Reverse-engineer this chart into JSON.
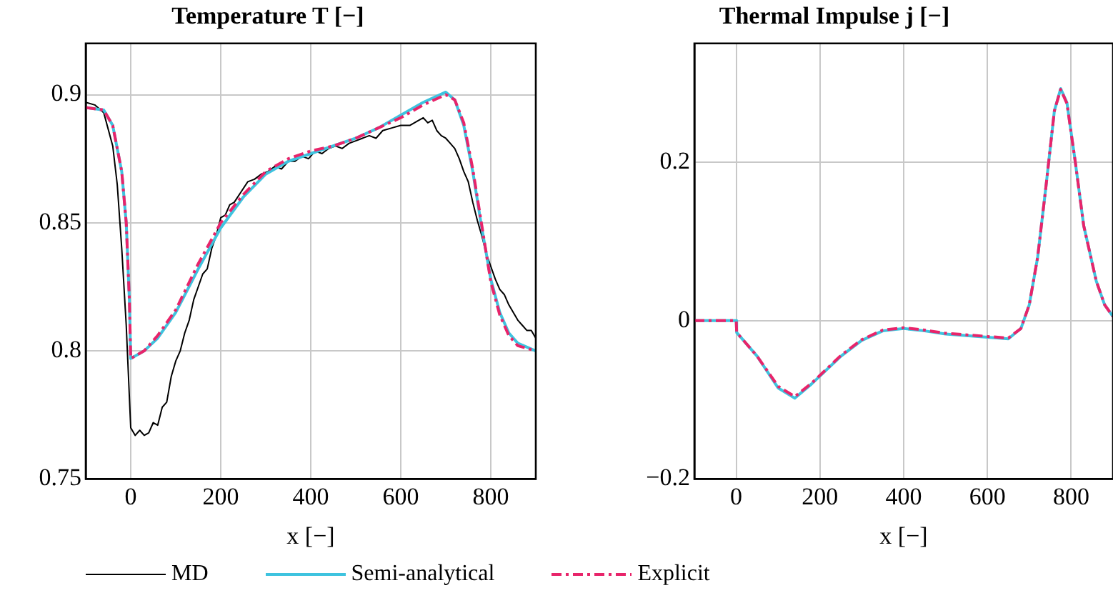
{
  "chart_data": [
    {
      "type": "line",
      "title": "Temperature T [−]",
      "xlabel": "x [−]",
      "xlim": [
        -100,
        900
      ],
      "xticks": [
        0,
        200,
        400,
        600,
        800
      ],
      "ylim": [
        0.75,
        0.92
      ],
      "yticks": [
        0.75,
        0.8,
        0.85,
        0.9
      ],
      "grid": true,
      "legend": "bottom",
      "marker": "none",
      "series": [
        {
          "name": "MD",
          "color": "#000000",
          "line_style": "solid",
          "x": [
            -100,
            -80,
            -60,
            -40,
            -30,
            -20,
            -10,
            -5,
            0,
            10,
            20,
            30,
            40,
            50,
            60,
            70,
            80,
            90,
            100,
            110,
            120,
            130,
            140,
            150,
            160,
            170,
            180,
            190,
            200,
            210,
            220,
            230,
            245,
            260,
            275,
            290,
            305,
            320,
            335,
            350,
            365,
            380,
            395,
            410,
            425,
            440,
            455,
            470,
            485,
            500,
            515,
            530,
            545,
            560,
            580,
            600,
            620,
            640,
            650,
            660,
            670,
            680,
            690,
            700,
            710,
            720,
            730,
            740,
            750,
            760,
            770,
            780,
            790,
            800,
            810,
            820,
            830,
            840,
            850,
            860,
            870,
            880,
            890,
            900
          ],
          "values": [
            0.897,
            0.896,
            0.893,
            0.88,
            0.865,
            0.84,
            0.81,
            0.79,
            0.77,
            0.767,
            0.769,
            0.767,
            0.768,
            0.772,
            0.771,
            0.778,
            0.78,
            0.79,
            0.796,
            0.8,
            0.807,
            0.812,
            0.82,
            0.825,
            0.83,
            0.832,
            0.84,
            0.845,
            0.852,
            0.853,
            0.857,
            0.858,
            0.862,
            0.866,
            0.867,
            0.869,
            0.87,
            0.872,
            0.871,
            0.874,
            0.874,
            0.876,
            0.875,
            0.878,
            0.877,
            0.879,
            0.88,
            0.879,
            0.881,
            0.882,
            0.883,
            0.884,
            0.883,
            0.886,
            0.887,
            0.888,
            0.888,
            0.89,
            0.891,
            0.889,
            0.89,
            0.886,
            0.884,
            0.883,
            0.881,
            0.879,
            0.875,
            0.87,
            0.866,
            0.858,
            0.851,
            0.845,
            0.838,
            0.833,
            0.828,
            0.824,
            0.822,
            0.818,
            0.815,
            0.812,
            0.81,
            0.808,
            0.808,
            0.805
          ]
        },
        {
          "name": "Semi-analytical",
          "color": "#3ec3df",
          "line_style": "solid",
          "x": [
            -100,
            -60,
            -40,
            -20,
            -10,
            -3,
            0,
            30,
            60,
            100,
            150,
            200,
            250,
            300,
            350,
            400,
            450,
            500,
            550,
            600,
            650,
            700,
            720,
            740,
            760,
            780,
            800,
            820,
            840,
            860,
            900
          ],
          "values": [
            0.895,
            0.894,
            0.888,
            0.87,
            0.85,
            0.82,
            0.797,
            0.8,
            0.805,
            0.815,
            0.832,
            0.848,
            0.86,
            0.869,
            0.874,
            0.877,
            0.88,
            0.883,
            0.887,
            0.892,
            0.897,
            0.901,
            0.898,
            0.888,
            0.87,
            0.848,
            0.828,
            0.815,
            0.807,
            0.803,
            0.8
          ]
        },
        {
          "name": "Explicit",
          "color": "#e8246a",
          "line_style": "dashed",
          "x": [
            -100,
            -60,
            -40,
            -20,
            -10,
            -3,
            0,
            30,
            60,
            100,
            150,
            200,
            250,
            300,
            350,
            400,
            450,
            500,
            550,
            600,
            650,
            700,
            720,
            740,
            760,
            780,
            800,
            820,
            840,
            860,
            900
          ],
          "values": [
            0.895,
            0.894,
            0.888,
            0.87,
            0.85,
            0.82,
            0.797,
            0.8,
            0.806,
            0.816,
            0.834,
            0.85,
            0.861,
            0.87,
            0.875,
            0.878,
            0.88,
            0.883,
            0.887,
            0.891,
            0.896,
            0.9,
            0.898,
            0.889,
            0.871,
            0.849,
            0.827,
            0.814,
            0.806,
            0.802,
            0.8
          ]
        }
      ]
    },
    {
      "type": "line",
      "title": "Thermal Impulse j [−]",
      "xlabel": "x [−]",
      "xlim": [
        -100,
        900
      ],
      "xticks": [
        0,
        200,
        400,
        600,
        800
      ],
      "ylim": [
        -0.2,
        0.35
      ],
      "yticks": [
        {
          "value": -0.2,
          "label": "−0.2"
        },
        0,
        0.2
      ],
      "grid": true,
      "marker": "none",
      "series": [
        {
          "color": "#3ec3df",
          "line_style": "solid",
          "x": [
            -100,
            0,
            1,
            50,
            100,
            140,
            180,
            250,
            300,
            350,
            400,
            450,
            500,
            600,
            650,
            680,
            700,
            720,
            740,
            760,
            775,
            790,
            810,
            830,
            860,
            880,
            900
          ],
          "values": [
            0,
            0,
            -0.015,
            -0.045,
            -0.085,
            -0.098,
            -0.08,
            -0.045,
            -0.025,
            -0.013,
            -0.01,
            -0.013,
            -0.017,
            -0.021,
            -0.023,
            -0.01,
            0.02,
            0.08,
            0.17,
            0.265,
            0.293,
            0.275,
            0.2,
            0.12,
            0.05,
            0.02,
            0.005
          ]
        },
        {
          "color": "#e8246a",
          "line_style": "dashed",
          "x": [
            -100,
            0,
            1,
            50,
            100,
            140,
            180,
            250,
            300,
            350,
            400,
            450,
            500,
            600,
            650,
            680,
            700,
            720,
            740,
            760,
            775,
            790,
            810,
            830,
            860,
            880,
            900
          ],
          "values": [
            0,
            0,
            -0.015,
            -0.045,
            -0.083,
            -0.096,
            -0.079,
            -0.044,
            -0.024,
            -0.012,
            -0.009,
            -0.012,
            -0.016,
            -0.02,
            -0.022,
            -0.01,
            0.02,
            0.08,
            0.17,
            0.265,
            0.292,
            0.274,
            0.2,
            0.12,
            0.05,
            0.02,
            0.005
          ]
        }
      ]
    }
  ]
}
